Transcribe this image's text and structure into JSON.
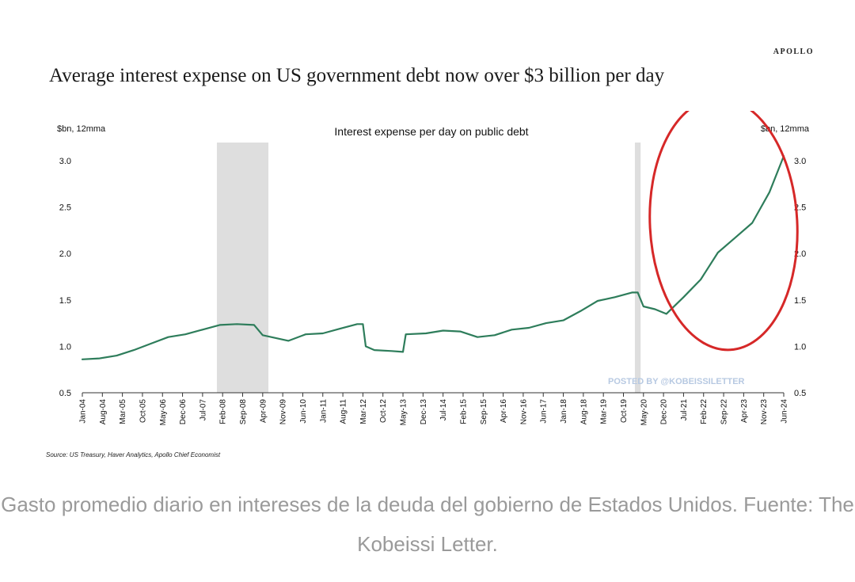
{
  "brand": "APOLLO",
  "title": "Average interest expense on US government debt now over $3 billion per day",
  "source": "Source: US Treasury, Haver Analytics, Apollo Chief Economist",
  "watermark": "POSTED BY @KOBEISSILETTER",
  "caption": "Gasto promedio diario en intereses de la deuda del gobierno de Estados Unidos. Fuente: The Kobeissi Letter.",
  "colors": {
    "line": "#2e7d5b",
    "recession": "#dedede",
    "highlight": "#d62828",
    "watermark": "#b7c9e2"
  },
  "chart_data": {
    "type": "line",
    "title": "Interest expense per day on public debt",
    "ylabel_left": "$bn, 12mma",
    "ylabel_right": "$bn, 12mma",
    "ylim": [
      0.5,
      3.0
    ],
    "yticks": [
      "0.5",
      "1.0",
      "1.5",
      "2.0",
      "2.5",
      "3.0"
    ],
    "x_tick_labels": [
      "Jan-04",
      "Aug-04",
      "Mar-05",
      "Oct-05",
      "May-06",
      "Dec-06",
      "Jul-07",
      "Feb-08",
      "Sep-08",
      "Apr-09",
      "Nov-09",
      "Jun-10",
      "Jan-11",
      "Aug-11",
      "Mar-12",
      "Oct-12",
      "May-13",
      "Dec-13",
      "Jul-14",
      "Feb-15",
      "Sep-15",
      "Apr-16",
      "Nov-16",
      "Jun-17",
      "Jan-18",
      "Aug-18",
      "Mar-19",
      "Oct-19",
      "May-20",
      "Dec-20",
      "Jul-21",
      "Feb-22",
      "Sep-22",
      "Apr-23",
      "Nov-23",
      "Jun-24"
    ],
    "recessions": [
      [
        "Dec-07",
        "Jun-09"
      ],
      [
        "Feb-20",
        "Apr-20"
      ]
    ],
    "legend": "none",
    "grid": false,
    "series": [
      {
        "x": [
          "Jan-04",
          "Jul-04",
          "Jan-05",
          "Jul-05",
          "Jan-06",
          "Jul-06",
          "Jan-07",
          "Jul-07",
          "Jan-08",
          "Jul-08",
          "Jan-09",
          "Apr-09",
          "Jul-09",
          "Jan-10",
          "Jul-10",
          "Jan-11",
          "Jul-11",
          "Jan-12",
          "Mar-12",
          "Apr-12",
          "Jul-12",
          "Jan-13",
          "May-13",
          "Jun-13",
          "Jan-14",
          "Jul-14",
          "Jan-15",
          "Jul-15",
          "Jan-16",
          "Jul-16",
          "Jan-17",
          "Jul-17",
          "Jan-18",
          "Jul-18",
          "Jan-19",
          "Jul-19",
          "Jan-20",
          "Mar-20",
          "May-20",
          "Sep-20",
          "Jan-21",
          "Jul-21",
          "Jan-22",
          "Jul-22",
          "Jan-23",
          "Jul-23",
          "Jan-24",
          "Jun-24"
        ],
        "y": [
          0.86,
          0.87,
          0.9,
          0.96,
          1.03,
          1.1,
          1.13,
          1.18,
          1.23,
          1.24,
          1.23,
          1.12,
          1.1,
          1.06,
          1.13,
          1.14,
          1.19,
          1.24,
          1.24,
          1.0,
          0.96,
          0.95,
          0.94,
          1.13,
          1.14,
          1.17,
          1.16,
          1.1,
          1.12,
          1.18,
          1.2,
          1.25,
          1.28,
          1.38,
          1.49,
          1.53,
          1.58,
          1.58,
          1.43,
          1.4,
          1.35,
          1.53,
          1.72,
          2.01,
          2.17,
          2.33,
          2.66,
          3.05
        ]
      }
    ]
  }
}
